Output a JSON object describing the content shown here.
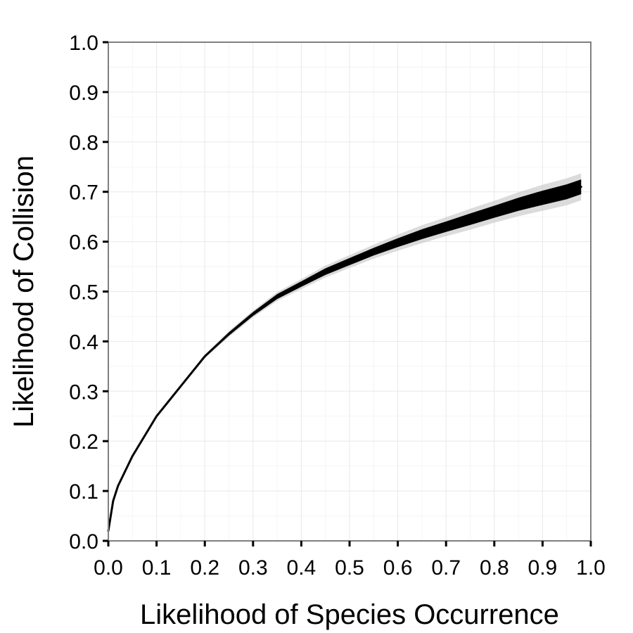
{
  "chart_data": {
    "type": "line",
    "title": "",
    "xlabel": "Likelihood of Species Occurrence",
    "ylabel": "Likelihood of Collision",
    "xlim": [
      0.0,
      1.0
    ],
    "ylim": [
      0.0,
      1.0
    ],
    "xticks": [
      "0.0",
      "0.1",
      "0.2",
      "0.3",
      "0.4",
      "0.5",
      "0.6",
      "0.7",
      "0.8",
      "0.9",
      "1.0"
    ],
    "yticks": [
      "0.0",
      "0.1",
      "0.2",
      "0.3",
      "0.4",
      "0.5",
      "0.6",
      "0.7",
      "0.8",
      "0.9",
      "1.0"
    ],
    "grid": true,
    "legend": "none",
    "line_color": "#000000",
    "band_color": "#bdbdbd",
    "series": [
      {
        "x": [
          0.0,
          0.01,
          0.02,
          0.05,
          0.1,
          0.15,
          0.2,
          0.25,
          0.3,
          0.35,
          0.4,
          0.45,
          0.5,
          0.55,
          0.6,
          0.65,
          0.7,
          0.75,
          0.8,
          0.85,
          0.9,
          0.95,
          0.98
        ],
        "y": [
          0.02,
          0.08,
          0.11,
          0.17,
          0.25,
          0.31,
          0.37,
          0.415,
          0.455,
          0.49,
          0.515,
          0.54,
          0.56,
          0.58,
          0.598,
          0.615,
          0.63,
          0.645,
          0.66,
          0.675,
          0.688,
          0.7,
          0.71
        ],
        "y_lower": [
          0.02,
          0.08,
          0.11,
          0.17,
          0.248,
          0.307,
          0.366,
          0.409,
          0.448,
          0.481,
          0.505,
          0.528,
          0.547,
          0.566,
          0.582,
          0.597,
          0.611,
          0.624,
          0.638,
          0.651,
          0.662,
          0.673,
          0.683
        ],
        "y_upper": [
          0.02,
          0.08,
          0.11,
          0.17,
          0.252,
          0.313,
          0.374,
          0.421,
          0.462,
          0.499,
          0.525,
          0.552,
          0.573,
          0.594,
          0.614,
          0.633,
          0.649,
          0.666,
          0.682,
          0.699,
          0.714,
          0.727,
          0.737
        ]
      }
    ]
  }
}
